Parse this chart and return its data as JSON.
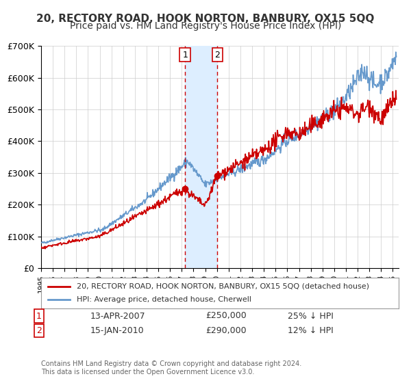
{
  "title": "20, RECTORY ROAD, HOOK NORTON, BANBURY, OX15 5QQ",
  "subtitle": "Price paid vs. HM Land Registry's House Price Index (HPI)",
  "xlabel": "",
  "ylabel": "",
  "ylim": [
    0,
    700000
  ],
  "xlim_start": 1995.0,
  "xlim_end": 2025.5,
  "yticks": [
    0,
    100000,
    200000,
    300000,
    400000,
    500000,
    600000,
    700000
  ],
  "ytick_labels": [
    "£0",
    "£100K",
    "£200K",
    "£300K",
    "£400K",
    "£500K",
    "£600K",
    "£700K"
  ],
  "sale1_date": 2007.28,
  "sale1_price": 250000,
  "sale1_label": "1",
  "sale2_date": 2010.04,
  "sale2_price": 290000,
  "sale2_label": "2",
  "shade_start": 2007.28,
  "shade_end": 2010.04,
  "red_color": "#cc0000",
  "blue_color": "#6699cc",
  "shade_color": "#ddeeff",
  "vline_color": "#cc0000",
  "grid_color": "#cccccc",
  "background_color": "#ffffff",
  "legend_label_red": "20, RECTORY ROAD, HOOK NORTON, BANBURY, OX15 5QQ (detached house)",
  "legend_label_blue": "HPI: Average price, detached house, Cherwell",
  "table_row1": [
    "1",
    "13-APR-2007",
    "£250,000",
    "25% ↓ HPI"
  ],
  "table_row2": [
    "2",
    "15-JAN-2010",
    "£290,000",
    "12% ↓ HPI"
  ],
  "footer": "Contains HM Land Registry data © Crown copyright and database right 2024.\nThis data is licensed under the Open Government Licence v3.0.",
  "title_fontsize": 11,
  "subtitle_fontsize": 10,
  "tick_fontsize": 9,
  "legend_fontsize": 8.5,
  "table_fontsize": 9
}
